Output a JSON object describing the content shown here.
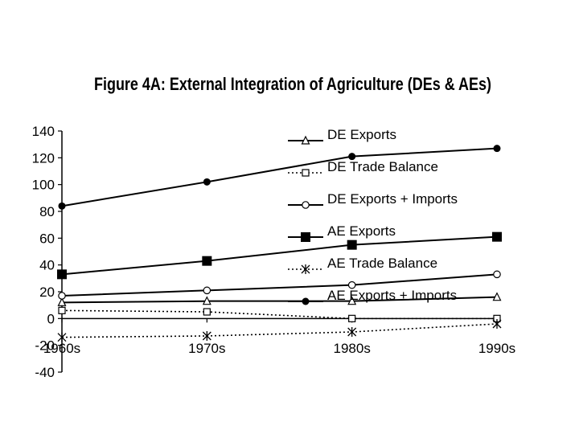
{
  "chart_data": {
    "type": "line",
    "title": "Figure 4A: External Integration of Agriculture (DEs & AEs)",
    "xlabel": "",
    "ylabel": "",
    "categories": [
      "1960s",
      "1970s",
      "1980s",
      "1990s"
    ],
    "ylim": [
      -40,
      140
    ],
    "yticks": [
      140,
      120,
      100,
      80,
      60,
      40,
      20,
      0,
      -20,
      -40
    ],
    "grid": false,
    "legend_position": "top-right",
    "series": [
      {
        "name": "DE Exports",
        "values": [
          12,
          13,
          13,
          16
        ],
        "marker": "triangle-open",
        "line": "solid"
      },
      {
        "name": "DE Trade Balance",
        "values": [
          6,
          5,
          0,
          0
        ],
        "marker": "square-open",
        "line": "dotted"
      },
      {
        "name": "DE Exports + Imports",
        "values": [
          17,
          21,
          25,
          33
        ],
        "marker": "circle-open",
        "line": "solid"
      },
      {
        "name": "AE Exports",
        "values": [
          33,
          43,
          55,
          61
        ],
        "marker": "square-filled",
        "line": "solid"
      },
      {
        "name": "AE Trade Balance",
        "values": [
          -14,
          -13,
          -10,
          -4
        ],
        "marker": "star",
        "line": "dotted"
      },
      {
        "name": "AE Exports + Imports",
        "values": [
          84,
          102,
          121,
          127
        ],
        "marker": "circle-filled",
        "line": "solid"
      }
    ]
  }
}
